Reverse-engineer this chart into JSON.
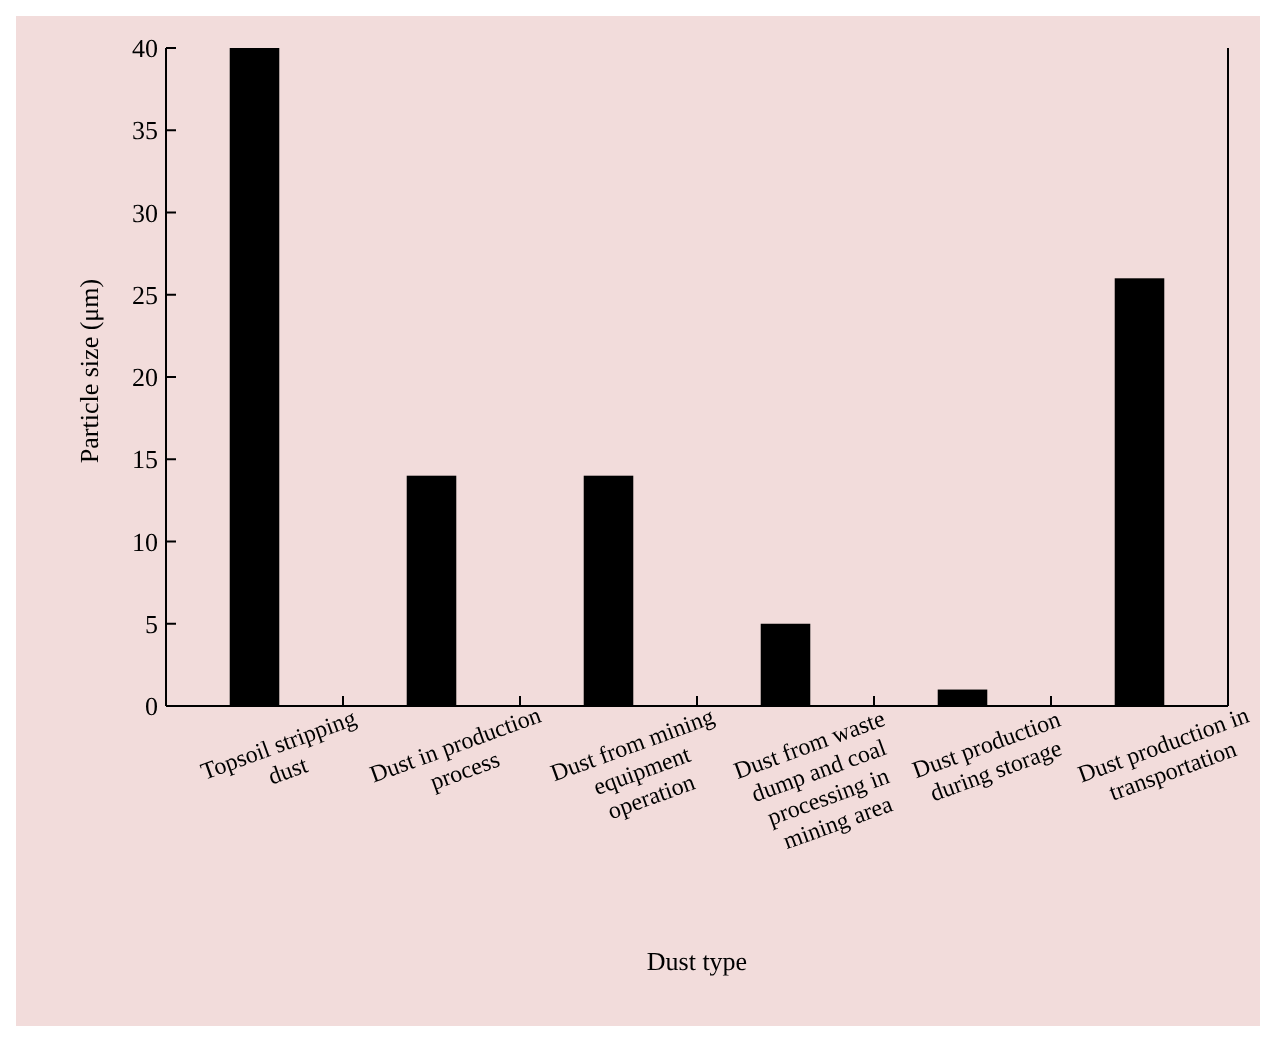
{
  "chart_data": {
    "type": "bar",
    "xlabel": "Dust type",
    "ylabel": "Particle size (μm)",
    "categories": [
      "Topsoil stripping dust",
      "Dust in production process",
      "Dust from mining equipment operation",
      "Dust from waste dump and coal processing in mining area",
      "Dust production during storage",
      "Dust production in transportation"
    ],
    "values": [
      40,
      14,
      14,
      5,
      1,
      26
    ],
    "color": "#000000",
    "ylim": [
      0,
      40
    ],
    "yticks": [
      0,
      5,
      10,
      15,
      20,
      25,
      30,
      35,
      40
    ],
    "grid": false
  }
}
